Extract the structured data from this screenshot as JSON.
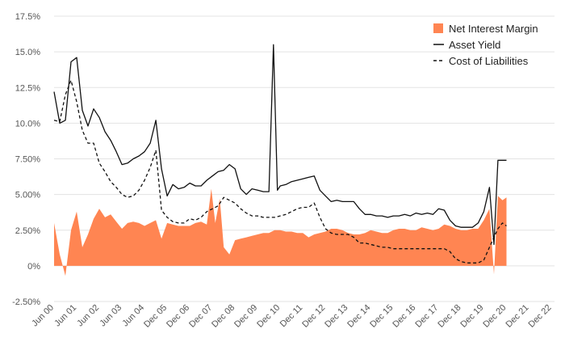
{
  "chart_data": {
    "type": "area",
    "title": "",
    "xlabel": "",
    "ylabel": "",
    "ylim": [
      -2.5,
      17.5
    ],
    "y_ticks": [
      -2.5,
      0,
      2.5,
      5.0,
      7.5,
      10.0,
      12.5,
      15.0,
      17.5
    ],
    "y_tick_labels": [
      "-2.50%",
      "0%",
      "2.50%",
      "5.00%",
      "7.50%",
      "10.0%",
      "12.5%",
      "15.0%",
      "17.5%"
    ],
    "x_tick_positions": [
      0,
      4,
      8,
      12,
      16,
      20,
      24,
      28,
      32,
      36,
      40,
      44,
      48,
      52,
      56,
      60,
      64,
      68,
      72,
      76,
      80,
      84,
      88
    ],
    "x_tick_labels": [
      "Jun 00",
      "Jun 01",
      "Jun 02",
      "Jun 03",
      "Jun 04",
      "Dec 05",
      "Dec 06",
      "Dec 07",
      "Dec 08",
      "Dec 09",
      "Dec 10",
      "Dec 11",
      "Dec 12",
      "Dec 13",
      "Dec 14",
      "Dec 15",
      "Dec 16",
      "Dec 17",
      "Dec 18",
      "Dec 19",
      "Dec 20",
      "Dec 21",
      "Dec 22"
    ],
    "x_index_max": 88.5,
    "legend_position": "top-right",
    "series": [
      {
        "name": "Net Interest Margin",
        "style": "area",
        "color": "#ff8552",
        "points": [
          [
            0,
            3.0
          ],
          [
            1,
            0.8
          ],
          [
            2,
            -0.7
          ],
          [
            3,
            2.5
          ],
          [
            4,
            3.8
          ],
          [
            5,
            1.3
          ],
          [
            6,
            2.2
          ],
          [
            7,
            3.3
          ],
          [
            8,
            4.0
          ],
          [
            9,
            3.4
          ],
          [
            10,
            3.6
          ],
          [
            11,
            3.1
          ],
          [
            12,
            2.6
          ],
          [
            13,
            3.0
          ],
          [
            14,
            3.1
          ],
          [
            15,
            3.0
          ],
          [
            16,
            2.8
          ],
          [
            17,
            3.0
          ],
          [
            18,
            3.2
          ],
          [
            19,
            1.9
          ],
          [
            20,
            3.0
          ],
          [
            21,
            2.9
          ],
          [
            22,
            2.8
          ],
          [
            23,
            2.8
          ],
          [
            24,
            2.8
          ],
          [
            25,
            3.0
          ],
          [
            26,
            3.1
          ],
          [
            27,
            2.9
          ],
          [
            27.8,
            5.4
          ],
          [
            28.5,
            3.0
          ],
          [
            29.3,
            4.7
          ],
          [
            30,
            1.3
          ],
          [
            31,
            0.8
          ],
          [
            32,
            1.8
          ],
          [
            33,
            1.9
          ],
          [
            34,
            2.0
          ],
          [
            35,
            2.1
          ],
          [
            36,
            2.2
          ],
          [
            37,
            2.3
          ],
          [
            38,
            2.3
          ],
          [
            39,
            2.5
          ],
          [
            40,
            2.5
          ],
          [
            41,
            2.4
          ],
          [
            42,
            2.4
          ],
          [
            43,
            2.3
          ],
          [
            44,
            2.3
          ],
          [
            45,
            2.0
          ],
          [
            46,
            2.2
          ],
          [
            47,
            2.3
          ],
          [
            48,
            2.4
          ],
          [
            49,
            2.6
          ],
          [
            50,
            2.6
          ],
          [
            51,
            2.5
          ],
          [
            52,
            2.3
          ],
          [
            53,
            2.2
          ],
          [
            54,
            2.2
          ],
          [
            55,
            2.3
          ],
          [
            56,
            2.5
          ],
          [
            57,
            2.4
          ],
          [
            58,
            2.3
          ],
          [
            59,
            2.3
          ],
          [
            60,
            2.5
          ],
          [
            61,
            2.6
          ],
          [
            62,
            2.6
          ],
          [
            63,
            2.5
          ],
          [
            64,
            2.5
          ],
          [
            65,
            2.7
          ],
          [
            66,
            2.6
          ],
          [
            67,
            2.5
          ],
          [
            68,
            2.6
          ],
          [
            69,
            2.9
          ],
          [
            70,
            2.8
          ],
          [
            71,
            2.6
          ],
          [
            72,
            2.5
          ],
          [
            73,
            2.5
          ],
          [
            74,
            2.6
          ],
          [
            75,
            2.6
          ],
          [
            76,
            3.2
          ],
          [
            77,
            4.0
          ],
          [
            77.8,
            -0.6
          ],
          [
            78.5,
            4.9
          ],
          [
            79.3,
            4.6
          ],
          [
            80,
            4.8
          ]
        ]
      },
      {
        "name": "Asset Yield",
        "style": "solid",
        "color": "#111111",
        "points": [
          [
            0,
            12.2
          ],
          [
            1,
            10.0
          ],
          [
            2,
            10.2
          ],
          [
            3,
            14.3
          ],
          [
            4,
            14.6
          ],
          [
            5,
            10.9
          ],
          [
            6,
            9.8
          ],
          [
            7,
            11.0
          ],
          [
            8,
            10.4
          ],
          [
            9,
            9.4
          ],
          [
            10,
            8.8
          ],
          [
            11,
            8.0
          ],
          [
            12,
            7.1
          ],
          [
            13,
            7.2
          ],
          [
            14,
            7.5
          ],
          [
            15,
            7.7
          ],
          [
            16,
            8.0
          ],
          [
            17,
            8.6
          ],
          [
            18,
            10.2
          ],
          [
            19,
            6.8
          ],
          [
            20,
            4.9
          ],
          [
            21,
            5.7
          ],
          [
            22,
            5.4
          ],
          [
            23,
            5.5
          ],
          [
            24,
            5.8
          ],
          [
            25,
            5.6
          ],
          [
            26,
            5.6
          ],
          [
            27,
            6.0
          ],
          [
            28,
            6.3
          ],
          [
            29,
            6.6
          ],
          [
            30,
            6.7
          ],
          [
            31,
            7.1
          ],
          [
            32,
            6.8
          ],
          [
            33,
            5.4
          ],
          [
            34,
            5.0
          ],
          [
            35,
            5.4
          ],
          [
            36,
            5.3
          ],
          [
            37,
            5.2
          ],
          [
            38,
            5.2
          ],
          [
            38.8,
            15.5
          ],
          [
            39.5,
            5.3
          ],
          [
            40,
            5.6
          ],
          [
            41,
            5.7
          ],
          [
            42,
            5.9
          ],
          [
            43,
            6.0
          ],
          [
            44,
            6.1
          ],
          [
            45,
            6.2
          ],
          [
            46,
            6.3
          ],
          [
            47,
            5.3
          ],
          [
            48,
            4.9
          ],
          [
            49,
            4.5
          ],
          [
            50,
            4.6
          ],
          [
            51,
            4.5
          ],
          [
            52,
            4.5
          ],
          [
            53,
            4.5
          ],
          [
            54,
            4.0
          ],
          [
            55,
            3.6
          ],
          [
            56,
            3.6
          ],
          [
            57,
            3.5
          ],
          [
            58,
            3.5
          ],
          [
            59,
            3.4
          ],
          [
            60,
            3.5
          ],
          [
            61,
            3.5
          ],
          [
            62,
            3.6
          ],
          [
            63,
            3.5
          ],
          [
            64,
            3.7
          ],
          [
            65,
            3.6
          ],
          [
            66,
            3.7
          ],
          [
            67,
            3.6
          ],
          [
            68,
            4.0
          ],
          [
            69,
            3.9
          ],
          [
            70,
            3.2
          ],
          [
            71,
            2.8
          ],
          [
            72,
            2.7
          ],
          [
            73,
            2.7
          ],
          [
            74,
            2.7
          ],
          [
            75,
            3.0
          ],
          [
            76,
            3.8
          ],
          [
            77,
            5.5
          ],
          [
            77.8,
            1.5
          ],
          [
            78.5,
            7.4
          ],
          [
            79.3,
            7.4
          ],
          [
            80,
            7.4
          ]
        ]
      },
      {
        "name": "Cost of Liabilities",
        "style": "dashed",
        "color": "#111111",
        "points": [
          [
            0,
            10.2
          ],
          [
            1,
            10.1
          ],
          [
            2,
            12.0
          ],
          [
            3,
            13.0
          ],
          [
            4,
            11.5
          ],
          [
            5,
            9.5
          ],
          [
            6,
            8.6
          ],
          [
            7,
            8.6
          ],
          [
            8,
            7.2
          ],
          [
            9,
            6.6
          ],
          [
            10,
            5.9
          ],
          [
            11,
            5.5
          ],
          [
            12,
            5.0
          ],
          [
            13,
            4.8
          ],
          [
            14,
            4.9
          ],
          [
            15,
            5.3
          ],
          [
            16,
            6.0
          ],
          [
            17,
            6.9
          ],
          [
            18,
            8.1
          ],
          [
            19,
            3.9
          ],
          [
            20,
            3.4
          ],
          [
            21,
            3.1
          ],
          [
            22,
            3.0
          ],
          [
            23,
            3.0
          ],
          [
            24,
            3.3
          ],
          [
            25,
            3.2
          ],
          [
            26,
            3.4
          ],
          [
            27,
            3.8
          ],
          [
            28,
            4.0
          ],
          [
            29,
            4.2
          ],
          [
            30,
            4.8
          ],
          [
            31,
            4.6
          ],
          [
            32,
            4.4
          ],
          [
            33,
            4.0
          ],
          [
            34,
            3.7
          ],
          [
            35,
            3.5
          ],
          [
            36,
            3.5
          ],
          [
            37,
            3.4
          ],
          [
            38,
            3.4
          ],
          [
            39,
            3.4
          ],
          [
            40,
            3.5
          ],
          [
            41,
            3.6
          ],
          [
            42,
            3.8
          ],
          [
            43,
            4.0
          ],
          [
            44,
            4.1
          ],
          [
            45,
            4.1
          ],
          [
            46,
            4.4
          ],
          [
            47,
            3.4
          ],
          [
            48,
            2.6
          ],
          [
            49,
            2.3
          ],
          [
            50,
            2.2
          ],
          [
            51,
            2.2
          ],
          [
            52,
            2.2
          ],
          [
            53,
            2.0
          ],
          [
            54,
            1.6
          ],
          [
            55,
            1.6
          ],
          [
            56,
            1.5
          ],
          [
            57,
            1.4
          ],
          [
            58,
            1.3
          ],
          [
            59,
            1.3
          ],
          [
            60,
            1.2
          ],
          [
            61,
            1.2
          ],
          [
            62,
            1.2
          ],
          [
            63,
            1.2
          ],
          [
            64,
            1.2
          ],
          [
            65,
            1.2
          ],
          [
            66,
            1.2
          ],
          [
            67,
            1.2
          ],
          [
            68,
            1.2
          ],
          [
            69,
            1.2
          ],
          [
            70,
            1.0
          ],
          [
            71,
            0.5
          ],
          [
            72,
            0.3
          ],
          [
            73,
            0.2
          ],
          [
            74,
            0.2
          ],
          [
            75,
            0.2
          ],
          [
            76,
            0.4
          ],
          [
            77,
            1.3
          ],
          [
            77.8,
            2.0
          ],
          [
            78.5,
            2.6
          ],
          [
            79.3,
            3.0
          ],
          [
            80,
            2.8
          ]
        ]
      }
    ]
  }
}
